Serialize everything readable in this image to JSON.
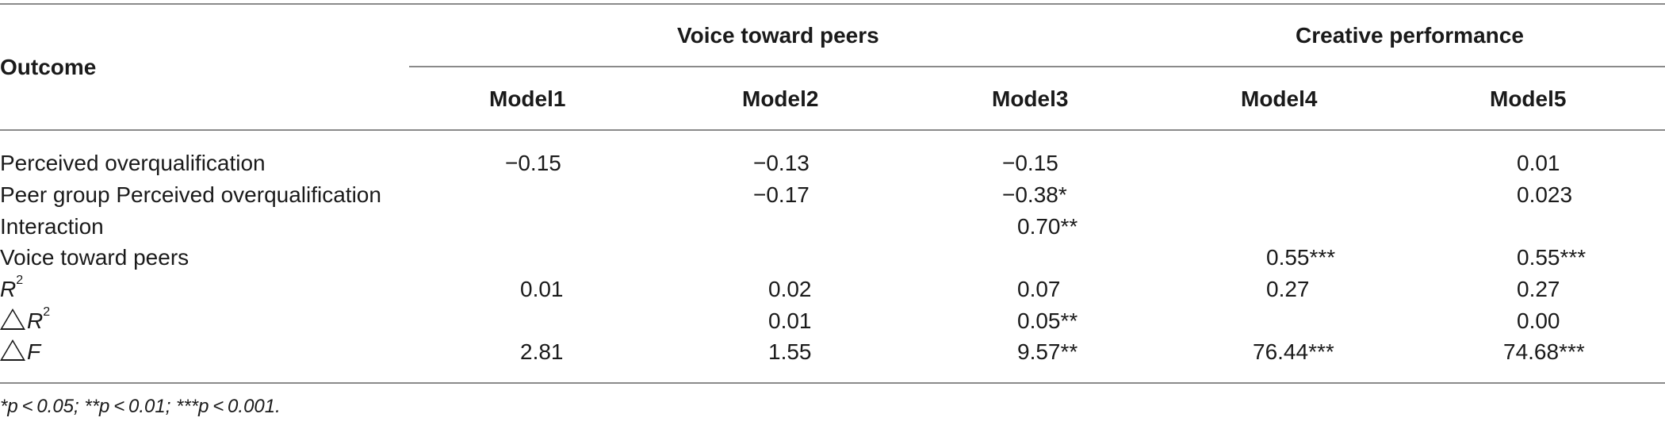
{
  "table": {
    "stub_header": "Outcome",
    "group_headers": [
      "Voice toward peers",
      "Creative performance"
    ],
    "model_headers": [
      "Model1",
      "Model2",
      "Model3",
      "Model4",
      "Model5"
    ],
    "rows": [
      {
        "label": "Perceived overqualification",
        "values": [
          "−0.15",
          "−0.13",
          "−0.15",
          "",
          "0.01"
        ]
      },
      {
        "label": "Peer group Perceived overqualification",
        "values": [
          "",
          "−0.17",
          "−0.38*",
          "",
          "0.023"
        ]
      },
      {
        "label": "Interaction",
        "values": [
          "",
          "",
          "0.70**",
          "",
          ""
        ]
      },
      {
        "label": "Voice toward peers",
        "values": [
          "",
          "",
          "",
          "0.55***",
          "0.55***"
        ]
      },
      {
        "label_main": "R",
        "label_sup": "2",
        "values": [
          "0.01",
          "0.02",
          "0.07",
          "0.27",
          "0.27"
        ]
      },
      {
        "label_main": "R",
        "label_sup": "2",
        "label_prefix": "△",
        "values": [
          "",
          "0.01",
          "0.05**",
          "",
          "0.00"
        ]
      },
      {
        "label_main": "F",
        "label_prefix": "△",
        "values": [
          "2.81",
          "1.55",
          "9.57**",
          "76.44***",
          "74.68***"
        ]
      }
    ],
    "footnote": "*p < 0.05;  **p < 0.01;  ***p < 0.001."
  }
}
